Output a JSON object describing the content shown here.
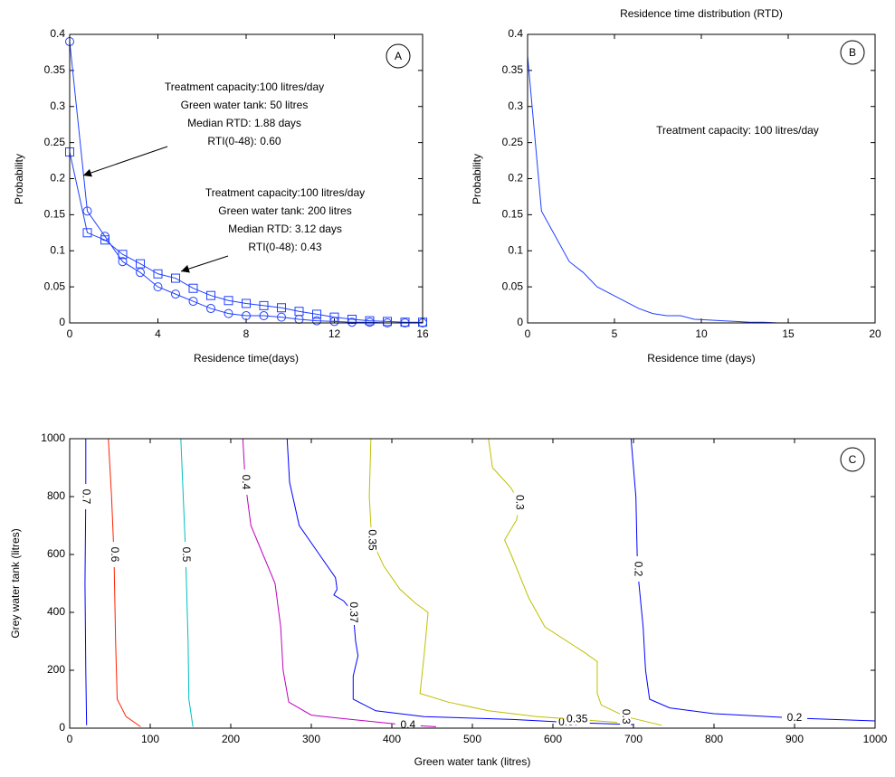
{
  "chart_data": [
    {
      "type": "line",
      "panel_label": "A",
      "xlabel": "Residence time(days)",
      "ylabel": "Probability",
      "xlim": [
        0,
        16
      ],
      "xticks": [
        0,
        4,
        8,
        12,
        16
      ],
      "ylim": [
        0,
        0.4
      ],
      "yticks": [
        0,
        0.05,
        0.1,
        0.15,
        0.2,
        0.25,
        0.3,
        0.35,
        0.4
      ],
      "x": [
        0,
        0.8,
        1.6,
        2.4,
        3.2,
        4,
        4.8,
        5.6,
        6.4,
        7.2,
        8,
        8.8,
        9.6,
        10.4,
        11.2,
        12,
        12.8,
        13.6,
        14.4,
        15.2,
        16
      ],
      "series": [
        {
          "color": "#2040ff",
          "marker": "circle",
          "values": [
            0.39,
            0.155,
            0.12,
            0.085,
            0.07,
            0.05,
            0.04,
            0.03,
            0.02,
            0.013,
            0.01,
            0.01,
            0.008,
            0.005,
            0.003,
            0.002,
            0.001,
            0.001,
            0,
            0,
            0
          ]
        },
        {
          "color": "#2040ff",
          "marker": "square",
          "values": [
            0.237,
            0.125,
            0.115,
            0.095,
            0.082,
            0.068,
            0.062,
            0.048,
            0.038,
            0.031,
            0.027,
            0.024,
            0.021,
            0.016,
            0.012,
            0.008,
            0.005,
            0.003,
            0.002,
            0.001,
            0.001
          ]
        }
      ],
      "annotations": [
        {
          "lines": [
            "Treatment capacity:100 litres/day",
            "Green water tank: 50 litres",
            "Median RTD: 1.88 days",
            "RTI(0-48): 0.60"
          ]
        },
        {
          "lines": [
            "Treatment capacity:100 litres/day",
            "Green water tank: 200 litres",
            "Median RTD: 3.12 days",
            "RTI(0-48): 0.43"
          ]
        }
      ]
    },
    {
      "type": "line",
      "panel_label": "B",
      "title": "Residence time distribution (RTD)",
      "xlabel": "Residence time (days)",
      "ylabel": "Probability",
      "xlim": [
        0,
        20
      ],
      "xticks": [
        0,
        5,
        10,
        15,
        20
      ],
      "ylim": [
        0,
        0.4
      ],
      "yticks": [
        0,
        0.05,
        0.1,
        0.15,
        0.2,
        0.25,
        0.3,
        0.35,
        0.4
      ],
      "x": [
        0,
        0.8,
        1.6,
        2.4,
        3.2,
        4,
        4.8,
        5.6,
        6.4,
        7.2,
        8,
        8.8,
        9.6,
        10.4,
        11.2,
        12,
        12.8,
        13.6,
        14.4,
        15.2,
        16
      ],
      "series": [
        {
          "color": "#2040ff",
          "values": [
            0.37,
            0.155,
            0.12,
            0.085,
            0.07,
            0.05,
            0.04,
            0.03,
            0.02,
            0.013,
            0.01,
            0.01,
            0.005,
            0.004,
            0.003,
            0.002,
            0.001,
            0.001,
            0,
            0,
            0
          ]
        }
      ],
      "annotations": [
        {
          "lines": [
            "Treatment capacity: 100 litres/day"
          ]
        }
      ]
    },
    {
      "type": "contour",
      "panel_label": "C",
      "xlabel": "Green water tank (litres)",
      "ylabel": "Grey water tank (litres)",
      "xlim": [
        0,
        1000
      ],
      "xticks": [
        0,
        100,
        200,
        300,
        400,
        500,
        600,
        700,
        800,
        900,
        1000
      ],
      "ylim": [
        0,
        1000
      ],
      "yticks": [
        0,
        200,
        400,
        600,
        800,
        1000
      ],
      "contours": [
        {
          "level": 0.7,
          "color": "#0000ff",
          "x": [
            20,
            20,
            19,
            20,
            21
          ],
          "y": [
            1000,
            800,
            500,
            200,
            10
          ]
        },
        {
          "level": 0.6,
          "color": "#ff2000",
          "x": [
            48,
            52,
            55,
            57,
            59,
            70,
            88
          ],
          "y": [
            1000,
            800,
            600,
            300,
            100,
            40,
            5
          ]
        },
        {
          "level": 0.5,
          "color": "#00bfbf",
          "x": [
            138,
            141,
            144,
            147,
            148,
            153
          ],
          "y": [
            1000,
            800,
            600,
            300,
            100,
            5
          ]
        },
        {
          "level": 0.4,
          "color": "#bf00bf",
          "x": [
            215,
            218,
            225,
            240,
            255,
            262,
            265,
            272,
            300,
            350,
            420,
            455
          ],
          "y": [
            1000,
            850,
            700,
            600,
            500,
            350,
            200,
            90,
            45,
            30,
            10,
            5
          ]
        },
        {
          "level": 0.37,
          "color": "#0000ff",
          "x": [
            270,
            273,
            285,
            310,
            330,
            332,
            328,
            340,
            352,
            355,
            358,
            352,
            352,
            380,
            440,
            550,
            620,
            700
          ],
          "y": [
            1000,
            850,
            700,
            600,
            520,
            480,
            460,
            440,
            400,
            300,
            250,
            180,
            100,
            60,
            40,
            30,
            20,
            12
          ]
        },
        {
          "level": 0.35,
          "color": "#bfbf00",
          "x": [
            374,
            372,
            375,
            390,
            410,
            430,
            445,
            440,
            435,
            470,
            520,
            580,
            630,
            680
          ],
          "y": [
            1000,
            800,
            650,
            560,
            480,
            430,
            400,
            250,
            120,
            90,
            60,
            40,
            30,
            20
          ]
        },
        {
          "level": 0.3,
          "color": "#bfbf00",
          "x": [
            520,
            525,
            548,
            558,
            555,
            540,
            548,
            570,
            590,
            640,
            655,
            655,
            660,
            690,
            735
          ],
          "y": [
            1000,
            900,
            830,
            780,
            720,
            650,
            600,
            450,
            350,
            260,
            230,
            120,
            80,
            40,
            10
          ]
        },
        {
          "level": 0.2,
          "color": "#0000ff",
          "x": [
            697,
            700,
            703,
            705,
            712,
            715,
            720,
            745,
            800,
            900,
            1000
          ],
          "y": [
            1000,
            900,
            800,
            550,
            350,
            200,
            100,
            70,
            50,
            35,
            25
          ]
        }
      ]
    }
  ]
}
